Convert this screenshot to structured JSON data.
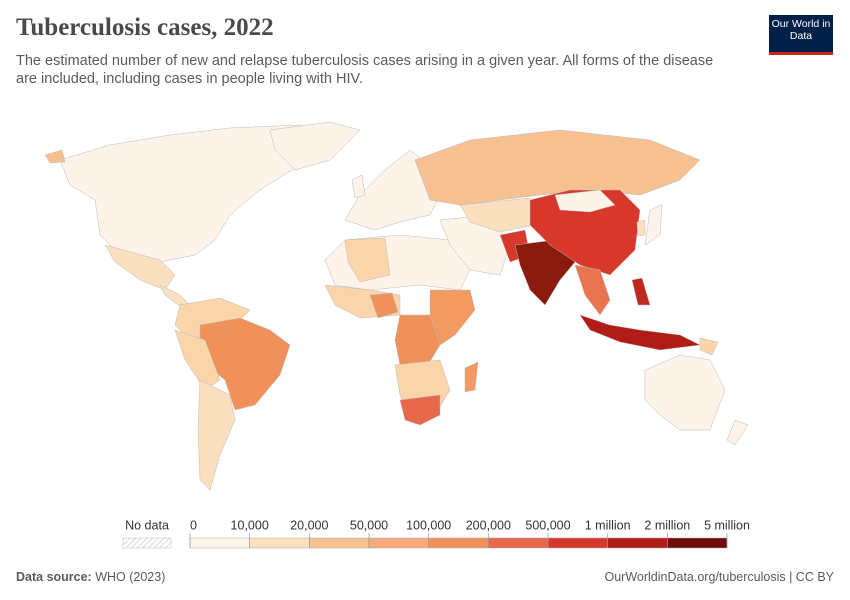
{
  "header": {
    "title": "Tuberculosis cases, 2022",
    "subtitle": "The estimated number of new and relapse tuberculosis cases arising in a given year. All forms of the disease are included, including cases in people living with HIV.",
    "logo": "Our World in Data"
  },
  "legend": {
    "no_data_label": "No data",
    "ticks": [
      "0",
      "10,000",
      "20,000",
      "50,000",
      "100,000",
      "200,000",
      "500,000",
      "1 million",
      "2 million",
      "5 million"
    ],
    "colors": [
      "#fdf3e8",
      "#fbe0c0",
      "#f7c191",
      "#f6ab7a",
      "#f0915c",
      "#e7684a",
      "#d8382c",
      "#b01d17",
      "#6d0c08"
    ]
  },
  "footer": {
    "source_label": "Data source:",
    "source": "WHO (2023)",
    "link": "OurWorldinData.org/tuberculosis | CC BY"
  }
}
